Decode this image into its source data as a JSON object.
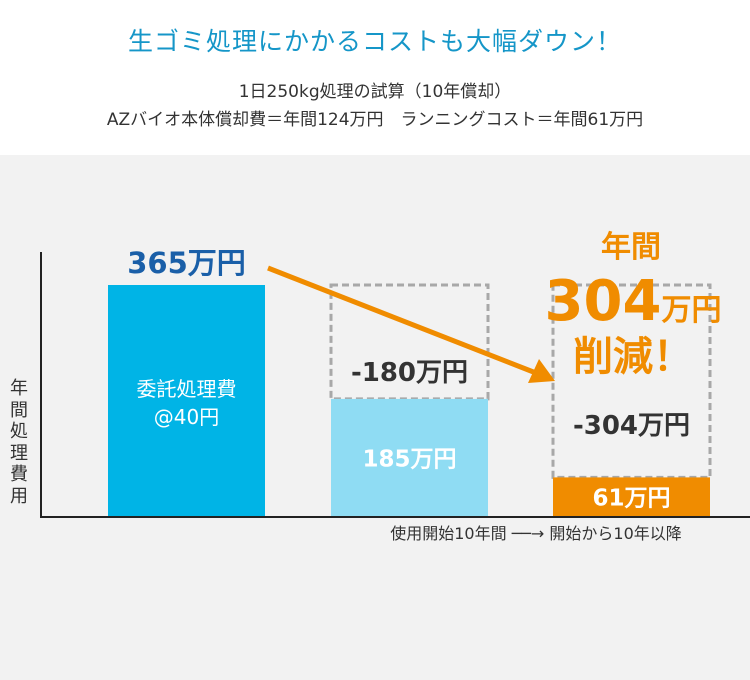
{
  "header": {
    "title": "生ゴミ処理にかかるコストも大幅ダウン！",
    "subtitle_line1": "1日250kg処理の試算（10年償却）",
    "subtitle_line2": "AZバイオ本体償却費＝年間124万円　ランニングコスト＝年間61万円"
  },
  "colors": {
    "title": "#1596c8",
    "outsourcing_bar": "#00b4e6",
    "first10_bar": "#8fdcf3",
    "after10_bar": "#f08c00",
    "arrow": "#f08c00",
    "value_blue": "#1a5fa8",
    "highlight_orange": "#f08c00",
    "background": "#f2f2f2"
  },
  "chart_data": {
    "type": "bar",
    "ylabel": "年間処理費用",
    "xaxis_note": "使用開始10年間 ──→ 開始から10年以降",
    "ylim": [
      0,
      400
    ],
    "bars": [
      {
        "id": "outsourcing",
        "value": 365,
        "top_label": "365万円",
        "inner_label": [
          "委託処理費",
          "@40円"
        ]
      },
      {
        "id": "first10",
        "value": 185,
        "ghost_value": 365,
        "inner_label": [
          "185万円"
        ],
        "reduction_label": "-180万円"
      },
      {
        "id": "after10",
        "value": 61,
        "ghost_value": 365,
        "inner_label": [
          "61万円"
        ],
        "reduction_label": "-304万円"
      }
    ],
    "callout": {
      "line1": "年間",
      "line2_num": "304",
      "line2_unit": "万円",
      "line3": "削減！"
    }
  }
}
